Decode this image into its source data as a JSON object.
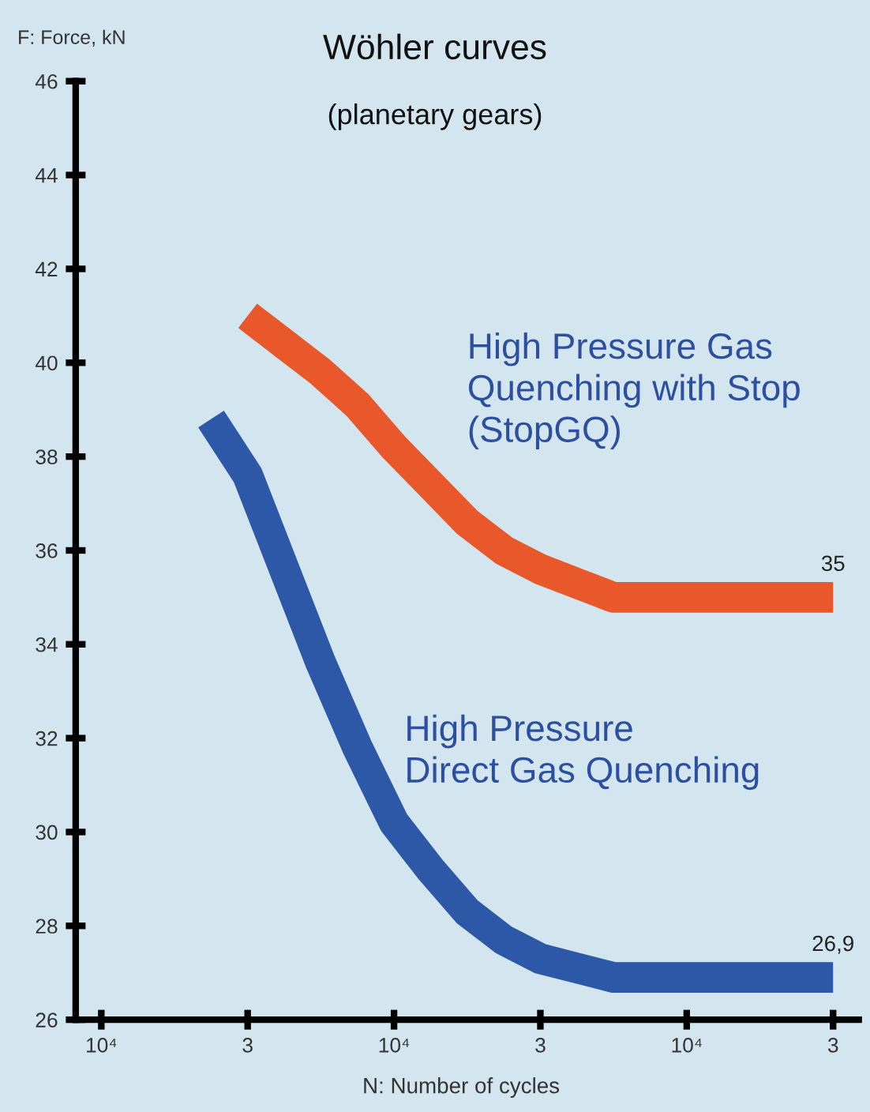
{
  "chart_data": {
    "type": "line",
    "title": "Wöhler curves",
    "subtitle": "(planetary gears)",
    "xlabel": "N: Number of cycles",
    "ylabel": "F: Force, kN",
    "categories": [
      "10⁴",
      null,
      null,
      null,
      "3",
      null,
      null,
      null,
      "10⁴",
      null,
      null,
      null,
      "3",
      null,
      null,
      null,
      "10⁴",
      null,
      null,
      null,
      "3"
    ],
    "ylim": [
      26,
      46
    ],
    "yticks": [
      26,
      28,
      30,
      32,
      34,
      36,
      38,
      40,
      42,
      44,
      46
    ],
    "grid": false,
    "legend": false,
    "marker": "none",
    "line_style": "solid",
    "series": [
      {
        "name": "High Pressure Gas\nQuenching with Stop\n(StopGQ)",
        "color": "#e8582a",
        "values": [
          null,
          null,
          null,
          null,
          41.0,
          40.4,
          39.8,
          39.1,
          38.2,
          37.4,
          36.6,
          36.0,
          35.6,
          35.3,
          35,
          35,
          35,
          35,
          35,
          35,
          35
        ]
      },
      {
        "name": "High Pressure\nDirect Gas Quenching",
        "color": "#2d58a8",
        "values": [
          null,
          null,
          null,
          38.8,
          37.6,
          35.6,
          33.6,
          31.8,
          30.2,
          29.2,
          28.3,
          27.7,
          27.3,
          27.1,
          26.9,
          26.9,
          26.9,
          26.9,
          26.9,
          26.9,
          26.9
        ]
      }
    ],
    "annotations": [
      {
        "text": "35",
        "y": 35
      },
      {
        "text": "26,9",
        "y": 26.9
      }
    ]
  }
}
